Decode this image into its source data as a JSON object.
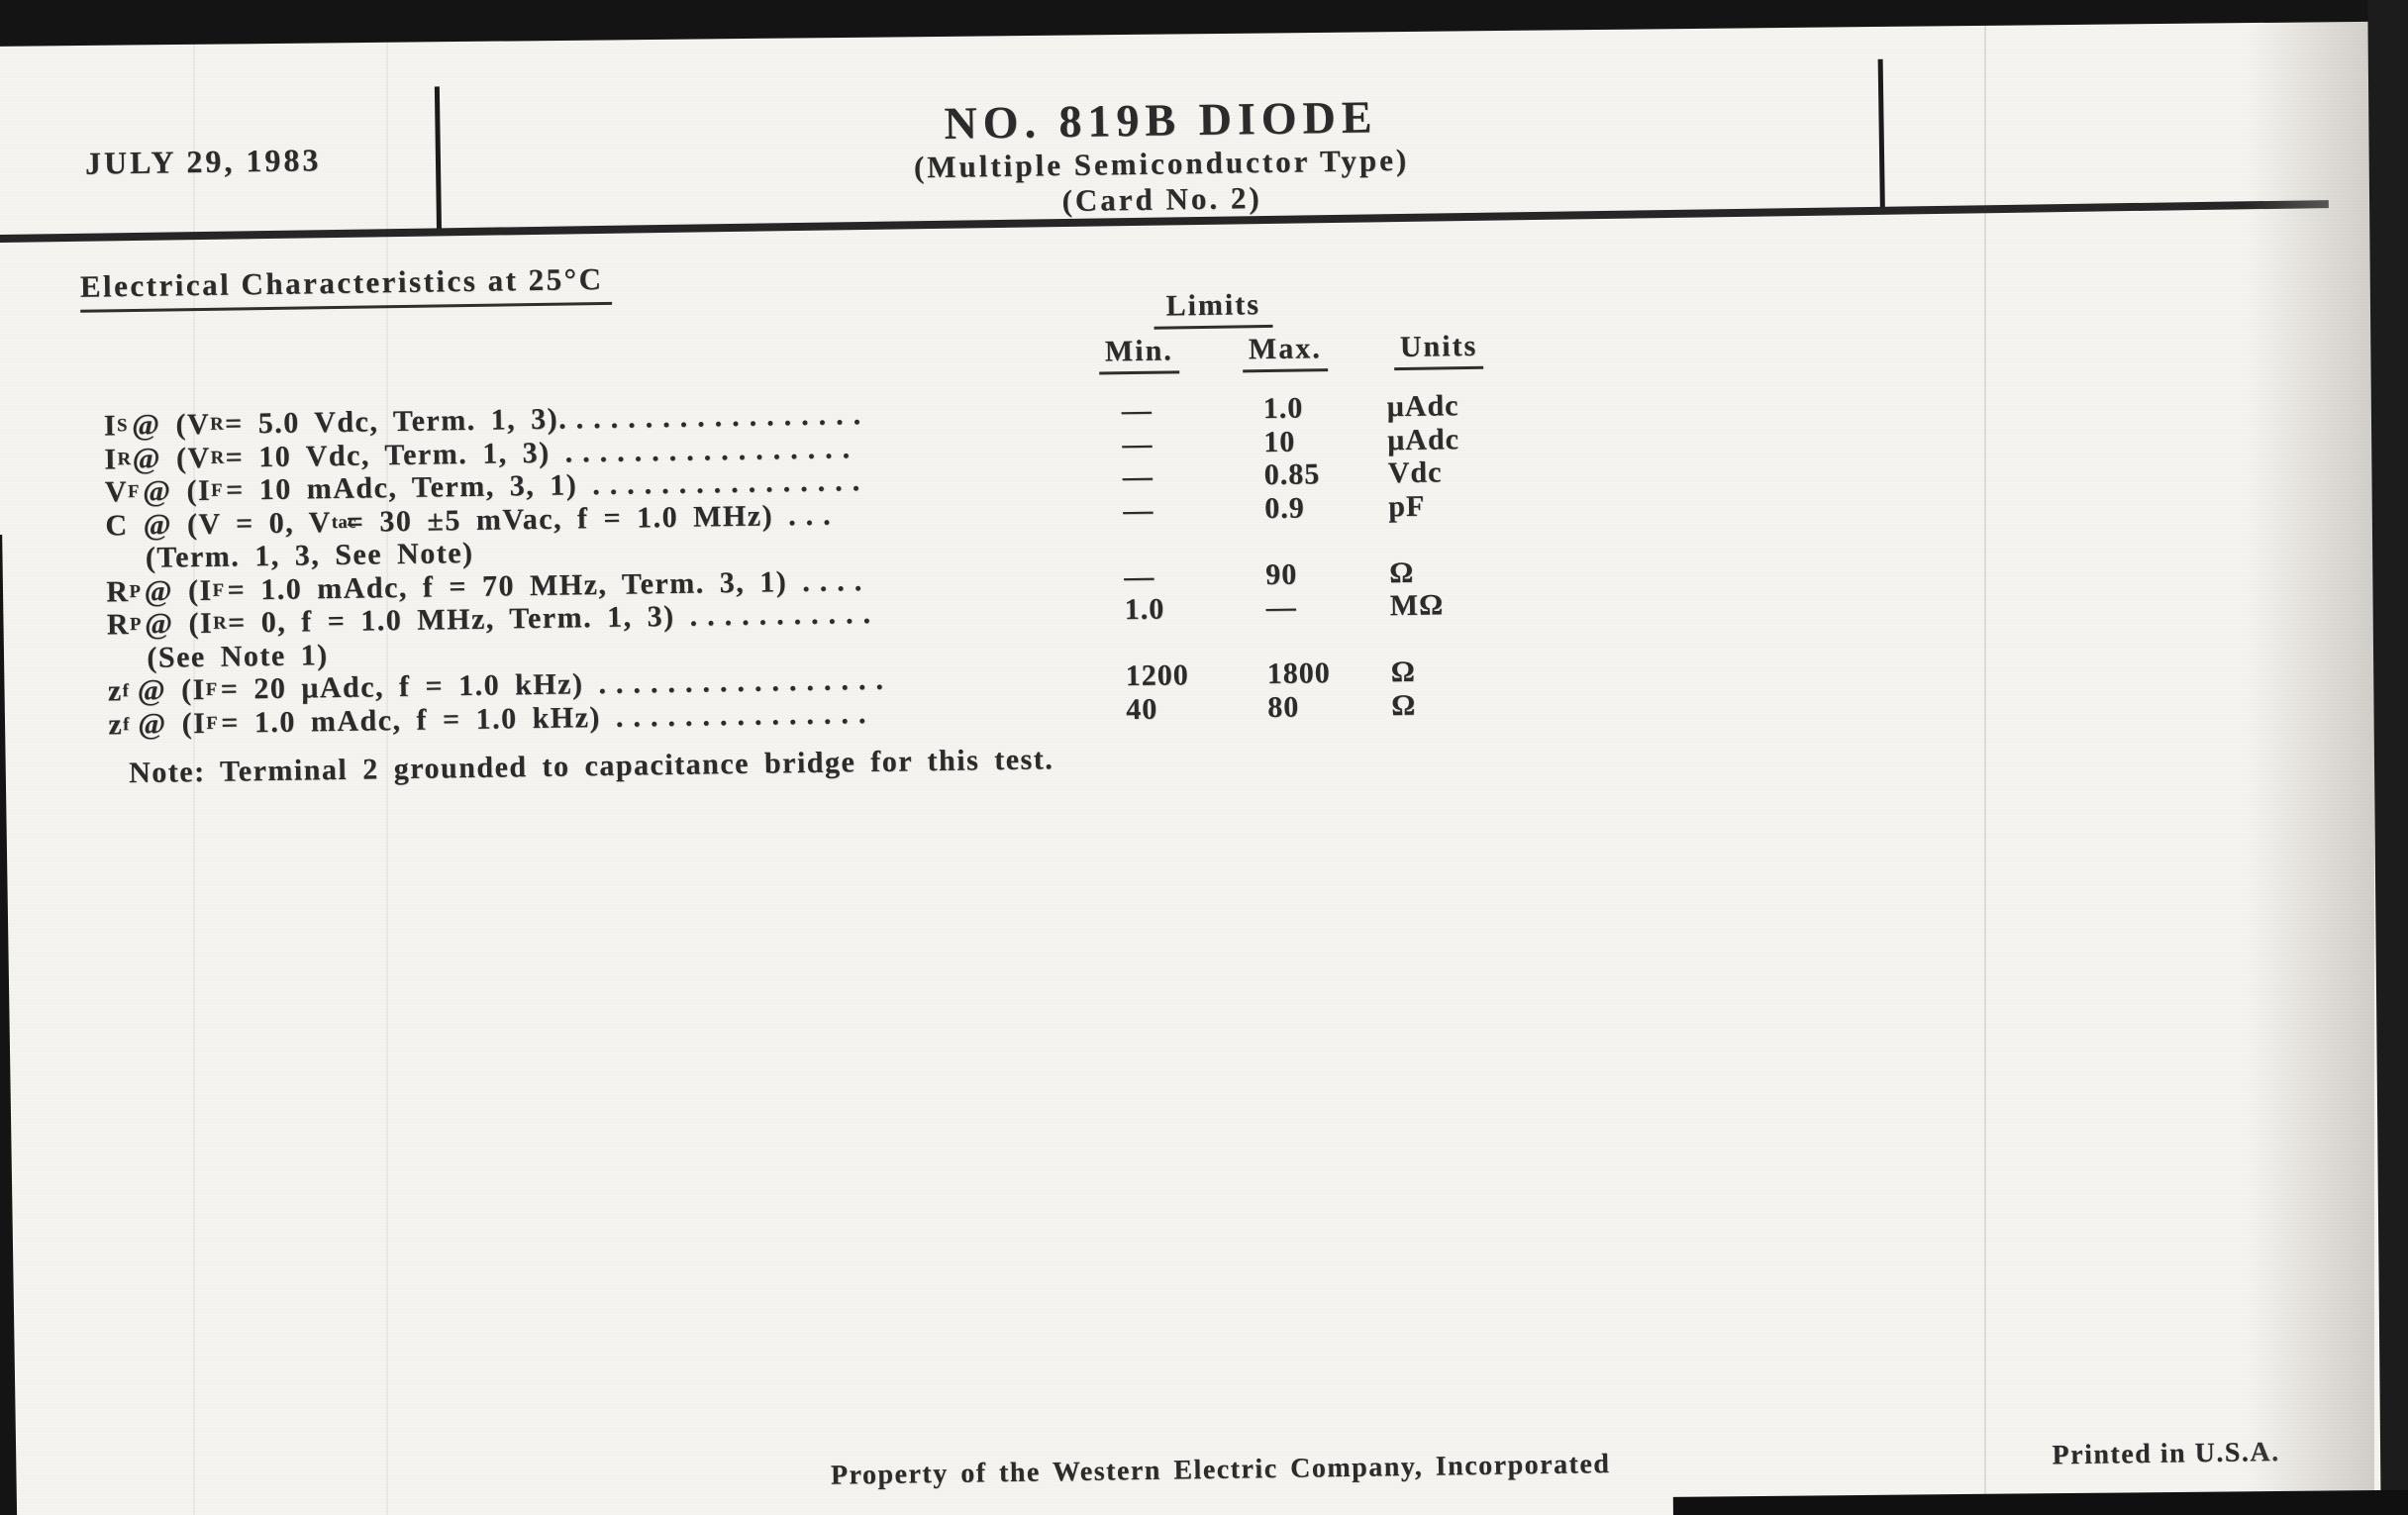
{
  "scan": {
    "paper_color": "#f5f3ef",
    "ink_color": "#2b2b2b"
  },
  "header": {
    "date": "JULY 29, 1983",
    "title": "NO. 819B DIODE",
    "subtitle": "(Multiple Semiconductor Type)",
    "card": "(Card No. 2)"
  },
  "section_title": "Electrical Characteristics at 25°C",
  "table": {
    "limits_header": "Limits",
    "columns": {
      "min": "Min.",
      "max": "Max.",
      "units": "Units"
    },
    "rows": [
      {
        "label": "I_{S} @ (V_{R} = 5.0 Vdc, Term. 1, 3)",
        "dots": "..................",
        "min": "—",
        "max": "1.0",
        "units": "μAdc"
      },
      {
        "label": "I_{R} @ (V_{R} = 10 Vdc, Term. 1, 3) ",
        "dots": ".................",
        "min": "—",
        "max": "10",
        "units": "μAdc"
      },
      {
        "label": "V_{F} @ (I_{F} = 10 mAdc, Term, 3, 1) ",
        "dots": "................",
        "min": "—",
        "max": "0.85",
        "units": "Vdc"
      },
      {
        "label": "C @ (V = 0, V_{tac} = 30 ±5 mVac, f = 1.0 MHz) ",
        "dots": "...",
        "min": "—",
        "max": "0.9",
        "units": "pF",
        "continuation": "(Term. 1, 3, See Note)"
      },
      {
        "label": "R_{P} @ (I_{F} = 1.0 mAdc, f = 70 MHz, Term. 3, 1) ",
        "dots": "....",
        "min": "—",
        "max": "90",
        "units": "Ω"
      },
      {
        "label": "R_{P} @ (I_{R} = 0, f = 1.0 MHz, Term. 1, 3) ",
        "dots": "...........",
        "min": "1.0",
        "max": "—",
        "units": "MΩ",
        "continuation": "(See Note 1)"
      },
      {
        "label": "z_{f} @ (I_{F} = 20 μAdc, f = 1.0 kHz) ",
        "dots": ".................",
        "min": "1200",
        "max": "1800",
        "units": "Ω"
      },
      {
        "label": "z_{f} @ (I_{F} = 1.0 mAdc, f = 1.0 kHz) ",
        "dots": "...............",
        "min": "40",
        "max": "80",
        "units": "Ω"
      }
    ],
    "note": "Note: Terminal 2 grounded to capacitance bridge for this test."
  },
  "footer": {
    "property": "Property of the Western Electric Company, Incorporated",
    "printed": "Printed in U.S.A."
  }
}
